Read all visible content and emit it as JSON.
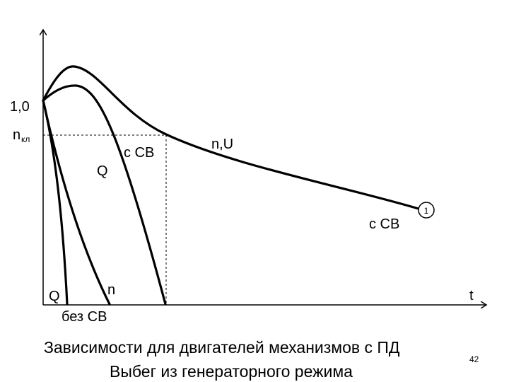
{
  "labels": {
    "y_one": "1,0",
    "n_kl_main": "n",
    "n_kl_sub": "кл",
    "t_axis": "t",
    "with_cb_upper": "с СВ",
    "q_middle": "Q",
    "n_u": "n,U",
    "with_cb_right": "с СВ",
    "marker_number": "1",
    "q_bottom": "Q",
    "n_bottom": "n",
    "without_cb": "без СВ"
  },
  "caption": {
    "line1": "Зависимости для двигателей механизмов с ПД",
    "line2": "Выбег из генераторного режима"
  },
  "page_number": "42"
}
